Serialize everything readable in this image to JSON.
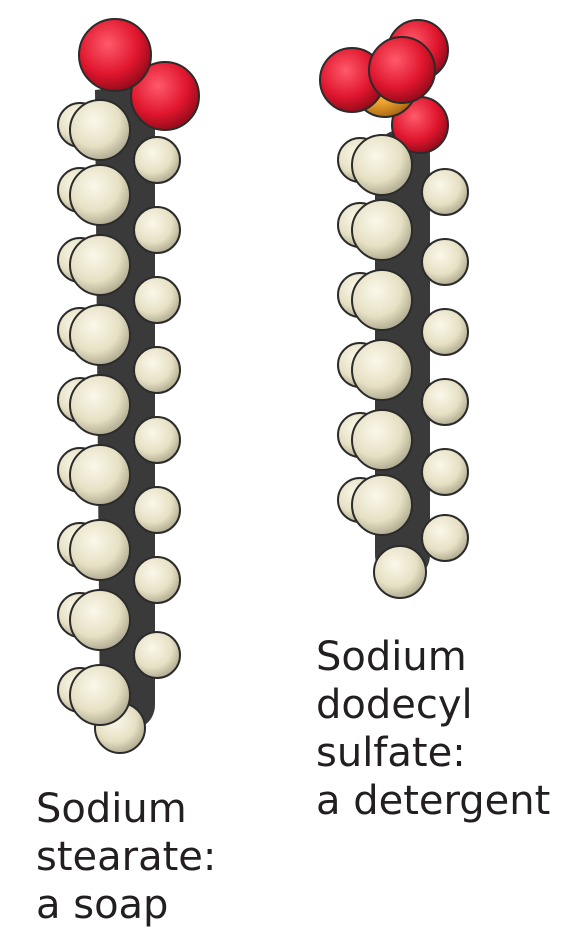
{
  "molecules": [
    {
      "label_lines": [
        "Sodium",
        "stearate:",
        "a soap"
      ]
    },
    {
      "label_lines": [
        "Sodium",
        "dodecyl",
        "sulfate:",
        "a detergent"
      ]
    }
  ]
}
